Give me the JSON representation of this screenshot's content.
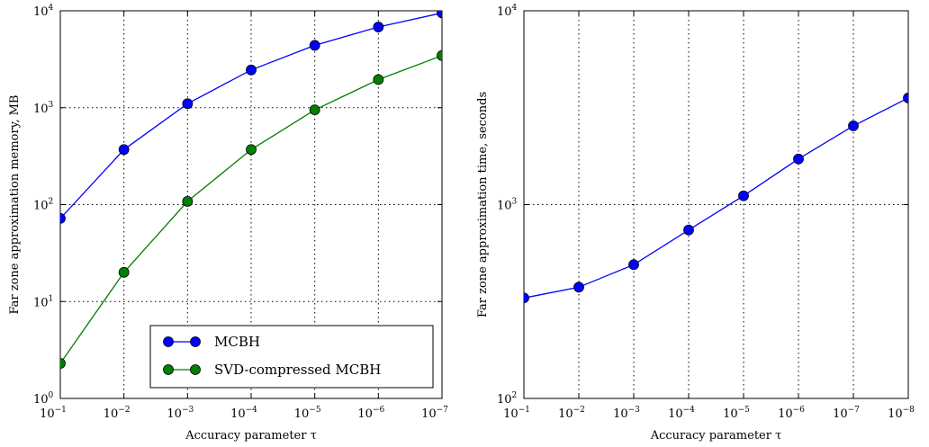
{
  "chart_data": [
    {
      "type": "line",
      "x_scale": "log-reversed",
      "y_scale": "log",
      "grid": true,
      "legend_position": "bottom-right",
      "xlabel": "Accuracy parameter τ",
      "ylabel": "Far zone approximation memory, MB",
      "xlim": [
        0.1,
        1e-07
      ],
      "ylim": [
        1,
        10000
      ],
      "x_ticks": [
        {
          "base": "10",
          "exp": "−1"
        },
        {
          "base": "10",
          "exp": "−2"
        },
        {
          "base": "10",
          "exp": "−3"
        },
        {
          "base": "10",
          "exp": "−4"
        },
        {
          "base": "10",
          "exp": "−5"
        },
        {
          "base": "10",
          "exp": "−6"
        },
        {
          "base": "10",
          "exp": "−7"
        }
      ],
      "y_ticks": [
        {
          "base": "10",
          "exp": "0"
        },
        {
          "base": "10",
          "exp": "1"
        },
        {
          "base": "10",
          "exp": "2"
        },
        {
          "base": "10",
          "exp": "3"
        },
        {
          "base": "10",
          "exp": "4"
        }
      ],
      "x": [
        0.1,
        0.01,
        0.001,
        0.0001,
        1e-05,
        1e-06,
        1e-07
      ],
      "series": [
        {
          "name": "MCBH",
          "color": "#0000ff",
          "values": [
            72,
            370,
            1100,
            2450,
            4400,
            6800,
            9500
          ]
        },
        {
          "name": "SVD-compressed MCBH",
          "color": "#008000",
          "values": [
            2.3,
            20,
            108,
            370,
            950,
            1950,
            3450
          ]
        }
      ]
    },
    {
      "type": "line",
      "x_scale": "log-reversed",
      "y_scale": "log",
      "grid": true,
      "xlabel": "Accuracy parameter τ",
      "ylabel": "Far zone approximation time, seconds",
      "xlim": [
        0.1,
        1e-08
      ],
      "ylim": [
        100,
        10000
      ],
      "x_ticks": [
        {
          "base": "10",
          "exp": "−1"
        },
        {
          "base": "10",
          "exp": "−2"
        },
        {
          "base": "10",
          "exp": "−3"
        },
        {
          "base": "10",
          "exp": "−4"
        },
        {
          "base": "10",
          "exp": "−5"
        },
        {
          "base": "10",
          "exp": "−6"
        },
        {
          "base": "10",
          "exp": "−7"
        },
        {
          "base": "10",
          "exp": "−8"
        }
      ],
      "y_ticks": [
        {
          "base": "10",
          "exp": "2"
        },
        {
          "base": "10",
          "exp": "3"
        },
        {
          "base": "10",
          "exp": "4"
        }
      ],
      "x": [
        0.1,
        0.01,
        0.001,
        0.0001,
        1e-05,
        1e-06,
        1e-07,
        1e-08
      ],
      "series": [
        {
          "color": "#0000ff",
          "values": [
            330,
            375,
            490,
            740,
            1110,
            1720,
            2550,
            3550
          ]
        }
      ]
    }
  ]
}
